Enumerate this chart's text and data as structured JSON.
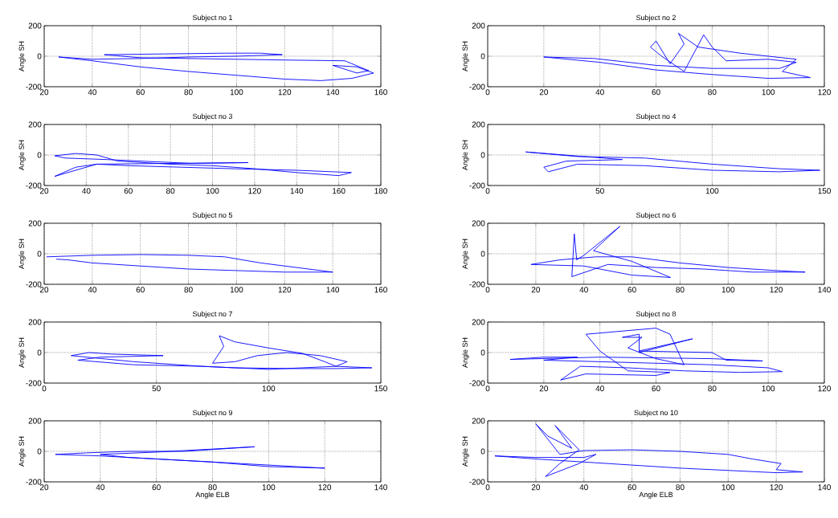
{
  "chart_data": [
    {
      "type": "line",
      "title": "Subject no 1",
      "ylabel": "Angle SH",
      "xlim": [
        20,
        160
      ],
      "ylim": [
        -200,
        200
      ],
      "xticks": [
        20,
        40,
        60,
        80,
        100,
        120,
        140,
        160
      ],
      "yticks": [
        -200,
        0,
        200
      ],
      "grid": true,
      "series": [
        {
          "color": "#0000ff",
          "x": [
            26,
            40,
            60,
            80,
            100,
            120,
            135,
            148,
            157
          ],
          "values": [
            -5,
            -30,
            -70,
            -100,
            -125,
            -150,
            -160,
            -145,
            -110
          ]
        },
        {
          "color": "#0000ff",
          "x": [
            157,
            150,
            140
          ],
          "values": [
            -110,
            -70,
            -60
          ]
        },
        {
          "color": "#0000ff",
          "x": [
            140,
            150,
            155
          ],
          "values": [
            -60,
            -110,
            -95
          ]
        },
        {
          "color": "#0000ff",
          "x": [
            155,
            145,
            120,
            100,
            80,
            60,
            45
          ],
          "values": [
            -95,
            -30,
            -25,
            -20,
            -15,
            -10,
            10
          ]
        },
        {
          "color": "#0000ff",
          "x": [
            45,
            70,
            95,
            110,
            119
          ],
          "values": [
            10,
            15,
            20,
            20,
            10
          ]
        },
        {
          "color": "#0000ff",
          "x": [
            119,
            100,
            80,
            60,
            40,
            26
          ],
          "values": [
            10,
            0,
            -5,
            -15,
            -20,
            -5
          ]
        }
      ]
    },
    {
      "type": "line",
      "title": "Subject no 2",
      "ylabel": "Angle SH",
      "xlim": [
        0,
        120
      ],
      "ylim": [
        -200,
        200
      ],
      "xticks": [
        0,
        20,
        40,
        60,
        80,
        100,
        120
      ],
      "yticks": [
        -200,
        0,
        200
      ],
      "grid": true,
      "series": [
        {
          "color": "#0000ff",
          "x": [
            20,
            40,
            60,
            80,
            100,
            115
          ],
          "values": [
            -5,
            -40,
            -90,
            -120,
            -145,
            -140
          ]
        },
        {
          "color": "#0000ff",
          "x": [
            115,
            105
          ],
          "values": [
            -140,
            -100
          ]
        },
        {
          "color": "#0000ff",
          "x": [
            105,
            110
          ],
          "values": [
            -100,
            -20
          ]
        },
        {
          "color": "#0000ff",
          "x": [
            110,
            90,
            75,
            68
          ],
          "values": [
            -20,
            20,
            60,
            150
          ]
        },
        {
          "color": "#0000ff",
          "x": [
            68,
            70
          ],
          "values": [
            150,
            80
          ]
        },
        {
          "color": "#0000ff",
          "x": [
            70,
            65,
            60,
            58
          ],
          "values": [
            80,
            -50,
            100,
            60
          ]
        },
        {
          "color": "#0000ff",
          "x": [
            58,
            62,
            70,
            77,
            80,
            85,
            100,
            110
          ],
          "values": [
            60,
            0,
            -100,
            140,
            60,
            -30,
            -20,
            -40
          ]
        },
        {
          "color": "#0000ff",
          "x": [
            110,
            104,
            80,
            60,
            38,
            20
          ],
          "values": [
            -40,
            -80,
            -80,
            -60,
            -15,
            -5
          ]
        }
      ]
    },
    {
      "type": "line",
      "title": "Subject no 3",
      "ylabel": "Angle SH",
      "xlim": [
        20,
        180
      ],
      "ylim": [
        -200,
        200
      ],
      "xticks": [
        20,
        40,
        60,
        80,
        100,
        120,
        140,
        160,
        180
      ],
      "yticks": [
        -200,
        0,
        200
      ],
      "grid": true,
      "series": [
        {
          "color": "#0000ff",
          "x": [
            25,
            35,
            45,
            55,
            80,
            100,
            120,
            140,
            160,
            166
          ],
          "values": [
            -5,
            10,
            0,
            -40,
            -60,
            -70,
            -90,
            -115,
            -135,
            -115
          ]
        },
        {
          "color": "#0000ff",
          "x": [
            166,
            140,
            110,
            85,
            60,
            45,
            35,
            25
          ],
          "values": [
            -115,
            -100,
            -90,
            -80,
            -70,
            -60,
            -80,
            -140
          ]
        },
        {
          "color": "#0000ff",
          "x": [
            25,
            30,
            45,
            117
          ],
          "values": [
            -140,
            -120,
            -60,
            -50
          ]
        },
        {
          "color": "#0000ff",
          "x": [
            117,
            90,
            50,
            30,
            25
          ],
          "values": [
            -50,
            -55,
            -30,
            -20,
            -5
          ]
        }
      ]
    },
    {
      "type": "line",
      "title": "Subject no 4",
      "ylabel": "Angle SH",
      "xlim": [
        0,
        150
      ],
      "ylim": [
        -200,
        200
      ],
      "xticks": [
        0,
        50,
        100,
        150
      ],
      "yticks": [
        -200,
        0,
        200
      ],
      "grid": true,
      "series": [
        {
          "color": "#0000ff",
          "x": [
            17,
            40,
            70,
            100,
            130,
            148
          ],
          "values": [
            20,
            -10,
            -20,
            -60,
            -90,
            -100
          ]
        },
        {
          "color": "#0000ff",
          "x": [
            148,
            130,
            100,
            70,
            40,
            27,
            25
          ],
          "values": [
            -100,
            -110,
            -100,
            -70,
            -60,
            -110,
            -80
          ]
        },
        {
          "color": "#0000ff",
          "x": [
            25,
            35,
            60
          ],
          "values": [
            -80,
            -40,
            -30
          ]
        },
        {
          "color": "#0000ff",
          "x": [
            60,
            17
          ],
          "values": [
            -30,
            20
          ]
        }
      ]
    },
    {
      "type": "line",
      "title": "Subject no 5",
      "ylabel": "Angle SH",
      "xlim": [
        20,
        160
      ],
      "ylim": [
        -200,
        200
      ],
      "xticks": [
        20,
        40,
        60,
        80,
        100,
        120,
        140,
        160
      ],
      "yticks": [
        -200,
        0,
        200
      ],
      "grid": true,
      "series": [
        {
          "color": "#0000ff",
          "x": [
            21,
            40,
            60,
            80,
            95,
            110,
            125,
            140
          ],
          "values": [
            -20,
            -10,
            -5,
            -10,
            -20,
            -60,
            -90,
            -120
          ]
        },
        {
          "color": "#0000ff",
          "x": [
            140,
            120,
            100,
            80,
            60,
            40,
            30,
            25
          ],
          "values": [
            -120,
            -120,
            -110,
            -100,
            -80,
            -60,
            -40,
            -35
          ]
        }
      ]
    },
    {
      "type": "line",
      "title": "Subject no 6",
      "ylabel": "Angle SH",
      "xlim": [
        0,
        140
      ],
      "ylim": [
        -200,
        200
      ],
      "xticks": [
        0,
        20,
        40,
        60,
        80,
        100,
        120,
        140
      ],
      "yticks": [
        -200,
        0,
        200
      ],
      "grid": true,
      "series": [
        {
          "color": "#0000ff",
          "x": [
            18,
            30,
            45,
            60,
            80,
            100,
            120,
            132
          ],
          "values": [
            -70,
            -40,
            -20,
            -20,
            -60,
            -90,
            -110,
            -120
          ]
        },
        {
          "color": "#0000ff",
          "x": [
            132,
            110,
            90,
            70,
            50,
            35
          ],
          "values": [
            -120,
            -120,
            -100,
            -90,
            -70,
            -150
          ]
        },
        {
          "color": "#0000ff",
          "x": [
            35,
            36,
            37,
            40,
            55
          ],
          "values": [
            -150,
            130,
            -40,
            -10,
            180
          ]
        },
        {
          "color": "#0000ff",
          "x": [
            55,
            44
          ],
          "values": [
            180,
            20
          ]
        },
        {
          "color": "#0000ff",
          "x": [
            44,
            60,
            76
          ],
          "values": [
            20,
            -50,
            -155
          ]
        },
        {
          "color": "#0000ff",
          "x": [
            76,
            60,
            40,
            18
          ],
          "values": [
            -155,
            -140,
            -80,
            -70
          ]
        }
      ]
    },
    {
      "type": "line",
      "title": "Subject no 7",
      "ylabel": "Angle SH",
      "xlim": [
        0,
        150
      ],
      "ylim": [
        -200,
        200
      ],
      "xticks": [
        0,
        50,
        100,
        150
      ],
      "yticks": [
        -200,
        0,
        200
      ],
      "grid": true,
      "series": [
        {
          "color": "#0000ff",
          "x": [
            12,
            20,
            30,
            53
          ],
          "values": [
            -20,
            0,
            -10,
            -20
          ]
        },
        {
          "color": "#0000ff",
          "x": [
            53,
            25,
            15
          ],
          "values": [
            -20,
            -30,
            -50
          ]
        },
        {
          "color": "#0000ff",
          "x": [
            15,
            40,
            70,
            85,
            110,
            130,
            146
          ],
          "values": [
            -50,
            -80,
            -90,
            -100,
            -105,
            -105,
            -100
          ]
        },
        {
          "color": "#0000ff",
          "x": [
            146,
            130,
            125,
            115,
            100,
            85,
            78
          ],
          "values": [
            -100,
            -90,
            -60,
            -5,
            30,
            70,
            110
          ]
        },
        {
          "color": "#0000ff",
          "x": [
            78,
            80
          ],
          "values": [
            110,
            40
          ]
        },
        {
          "color": "#0000ff",
          "x": [
            80,
            75
          ],
          "values": [
            40,
            -70
          ]
        },
        {
          "color": "#0000ff",
          "x": [
            75,
            85,
            95,
            108,
            123,
            135
          ],
          "values": [
            -70,
            -60,
            -20,
            0,
            -20,
            -60
          ]
        },
        {
          "color": "#0000ff",
          "x": [
            135,
            130,
            100,
            70,
            40,
            12
          ],
          "values": [
            -60,
            -90,
            -110,
            -90,
            -60,
            -20
          ]
        }
      ]
    },
    {
      "type": "line",
      "title": "Subject no 8",
      "ylabel": "Angle SH",
      "xlim": [
        0,
        120
      ],
      "ylim": [
        -200,
        200
      ],
      "xticks": [
        0,
        20,
        40,
        60,
        80,
        100,
        120
      ],
      "yticks": [
        -200,
        0,
        200
      ],
      "grid": true,
      "series": [
        {
          "color": "#0000ff",
          "x": [
            8,
            20,
            32
          ],
          "values": [
            -45,
            -30,
            -30
          ]
        },
        {
          "color": "#0000ff",
          "x": [
            32,
            20
          ],
          "values": [
            -30,
            -50
          ]
        },
        {
          "color": "#0000ff",
          "x": [
            20,
            40,
            60,
            80,
            100,
            105
          ],
          "values": [
            -50,
            -60,
            -70,
            -80,
            -100,
            -125
          ]
        },
        {
          "color": "#0000ff",
          "x": [
            105,
            90,
            70,
            50,
            33,
            26
          ],
          "values": [
            -125,
            -130,
            -120,
            -100,
            -90,
            -180
          ]
        },
        {
          "color": "#0000ff",
          "x": [
            26,
            35,
            60,
            65
          ],
          "values": [
            -180,
            -140,
            -150,
            -130
          ]
        },
        {
          "color": "#0000ff",
          "x": [
            65,
            50,
            40,
            35
          ],
          "values": [
            -130,
            -120,
            10,
            120
          ]
        },
        {
          "color": "#0000ff",
          "x": [
            35,
            60,
            65,
            70
          ],
          "values": [
            120,
            160,
            120,
            -80
          ]
        },
        {
          "color": "#0000ff",
          "x": [
            70,
            60,
            50
          ],
          "values": [
            -80,
            -40,
            30
          ]
        },
        {
          "color": "#0000ff",
          "x": [
            50,
            55
          ],
          "values": [
            30,
            100
          ]
        },
        {
          "color": "#0000ff",
          "x": [
            55,
            48
          ],
          "values": [
            100,
            100
          ]
        },
        {
          "color": "#0000ff",
          "x": [
            48,
            54,
            54,
            73
          ],
          "values": [
            100,
            120,
            0,
            90
          ]
        },
        {
          "color": "#0000ff",
          "x": [
            73,
            54
          ],
          "values": [
            90,
            10
          ]
        },
        {
          "color": "#0000ff",
          "x": [
            54,
            80,
            85,
            98
          ],
          "values": [
            10,
            0,
            -50,
            -55
          ]
        },
        {
          "color": "#0000ff",
          "x": [
            98,
            80,
            40,
            8
          ],
          "values": [
            -55,
            -40,
            -30,
            -45
          ]
        }
      ]
    },
    {
      "type": "line",
      "title": "Subject no 9",
      "xlabel": "Angle ELB",
      "ylabel": "Angle SH",
      "xlim": [
        20,
        140
      ],
      "ylim": [
        -200,
        200
      ],
      "xticks": [
        20,
        40,
        60,
        80,
        100,
        120,
        140
      ],
      "yticks": [
        -200,
        0,
        200
      ],
      "grid": true,
      "series": [
        {
          "color": "#0000ff",
          "x": [
            24,
            40,
            60,
            80,
            100,
            120
          ],
          "values": [
            -20,
            -30,
            -50,
            -70,
            -100,
            -110
          ]
        },
        {
          "color": "#0000ff",
          "x": [
            120,
            110,
            90,
            70,
            50,
            40
          ],
          "values": [
            -110,
            -100,
            -80,
            -60,
            -40,
            -20
          ]
        },
        {
          "color": "#0000ff",
          "x": [
            40,
            60,
            95
          ],
          "values": [
            -20,
            -5,
            30
          ]
        },
        {
          "color": "#0000ff",
          "x": [
            95,
            70,
            50,
            35,
            24
          ],
          "values": [
            30,
            0,
            0,
            -10,
            -20
          ]
        }
      ]
    },
    {
      "type": "line",
      "title": "Subject no 10",
      "xlabel": "Angle ELB",
      "ylabel": "Angle SH",
      "xlim": [
        0,
        140
      ],
      "ylim": [
        -200,
        200
      ],
      "xticks": [
        0,
        20,
        40,
        60,
        80,
        100,
        120,
        140
      ],
      "yticks": [
        -200,
        0,
        200
      ],
      "grid": true,
      "series": [
        {
          "color": "#0000ff",
          "x": [
            3,
            20,
            40,
            60,
            80,
            100,
            120,
            131
          ],
          "values": [
            -30,
            -50,
            -70,
            -90,
            -110,
            -125,
            -140,
            -135
          ]
        },
        {
          "color": "#0000ff",
          "x": [
            131,
            120
          ],
          "values": [
            -135,
            -120
          ]
        },
        {
          "color": "#0000ff",
          "x": [
            120,
            122
          ],
          "values": [
            -120,
            -80
          ]
        },
        {
          "color": "#0000ff",
          "x": [
            122,
            110,
            100,
            80,
            60,
            40,
            30,
            20
          ],
          "values": [
            -80,
            -50,
            -20,
            0,
            10,
            5,
            -20,
            180
          ]
        },
        {
          "color": "#0000ff",
          "x": [
            20,
            25,
            35
          ],
          "values": [
            180,
            100,
            20
          ]
        },
        {
          "color": "#0000ff",
          "x": [
            35,
            28
          ],
          "values": [
            20,
            170
          ]
        },
        {
          "color": "#0000ff",
          "x": [
            28,
            38
          ],
          "values": [
            170,
            10
          ]
        },
        {
          "color": "#0000ff",
          "x": [
            38,
            30,
            24
          ],
          "values": [
            10,
            -80,
            -165
          ]
        },
        {
          "color": "#0000ff",
          "x": [
            24,
            38,
            45
          ],
          "values": [
            -165,
            -80,
            -20
          ]
        },
        {
          "color": "#0000ff",
          "x": [
            45,
            40,
            20,
            3
          ],
          "values": [
            -20,
            -40,
            -40,
            -30
          ]
        }
      ]
    }
  ]
}
